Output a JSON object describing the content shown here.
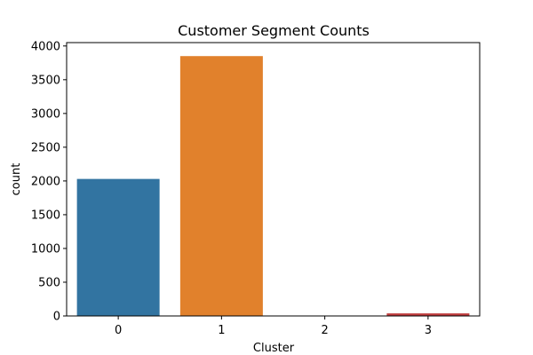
{
  "chart_data": {
    "type": "bar",
    "title": "Customer Segment Counts",
    "xlabel": "Cluster",
    "ylabel": "count",
    "categories": [
      "0",
      "1",
      "2",
      "3"
    ],
    "values": [
      2030,
      3850,
      0,
      38
    ],
    "colors": [
      "#3274a1",
      "#e1812c",
      "#3a923a",
      "#c03d3e"
    ],
    "ylim": [
      0,
      4050
    ],
    "yticks": [
      0,
      500,
      1000,
      1500,
      2000,
      2500,
      3000,
      3500,
      4000
    ],
    "grid": false,
    "legend": "none"
  }
}
